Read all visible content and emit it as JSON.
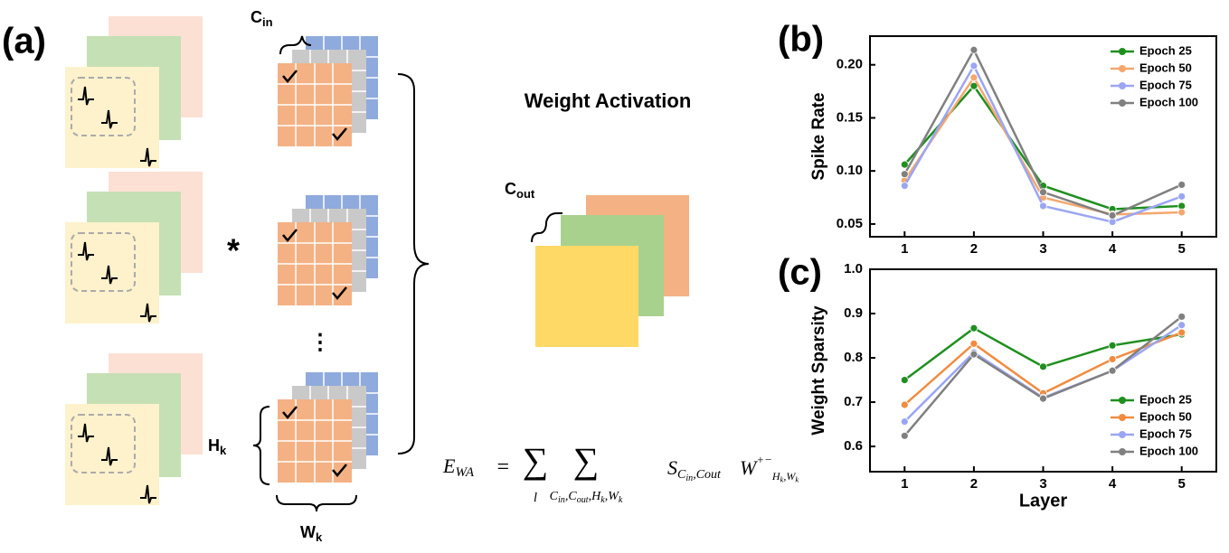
{
  "diagram": {
    "label": "(a)",
    "title": "Weight Activation",
    "op": "*",
    "ellipsis": "⋮",
    "c_in": {
      "b": "C",
      "s": "in"
    },
    "c_out": {
      "b": "C",
      "s": "out"
    },
    "h_k": {
      "b": "H",
      "s": "k"
    },
    "w_k": {
      "b": "W",
      "s": "k"
    },
    "formula": {
      "lhs": "E",
      "lhs_sub": "WA",
      "eq": "=",
      "sum": "∑",
      "sum1_sub": "l",
      "sep": ",",
      "sum2_sub": [
        {
          "b": "C",
          "s": "in"
        },
        {
          "b": "C",
          "s": "out"
        },
        {
          "b": "H",
          "s": "k"
        },
        {
          "b": "W",
          "s": "k"
        }
      ],
      "s": "S",
      "s_sub": [
        {
          "b": "C",
          "s": "in"
        },
        {
          "b": "Cout"
        }
      ],
      "w": "W",
      "w_sup": "+−",
      "w_sub": [
        {
          "b": "H",
          "s": "k"
        },
        {
          "b": "W",
          "s": "k"
        }
      ]
    }
  },
  "chart_data": [
    {
      "type": "line",
      "panel_label": "(b)",
      "y_label": "Spike Rate",
      "x": [
        1,
        2,
        3,
        4,
        5
      ],
      "xlim": [
        0.5,
        5.5
      ],
      "xticks": [
        1,
        2,
        3,
        4,
        5
      ],
      "ylim": [
        0.038,
        0.227
      ],
      "yticks": [
        {
          "value": 0.05,
          "label": "0.05"
        },
        {
          "value": 0.1,
          "label": "0.10"
        },
        {
          "value": 0.15,
          "label": "0.15"
        },
        {
          "value": 0.2,
          "label": "0.20"
        }
      ],
      "grid": false,
      "legend": "upper right",
      "series": [
        {
          "name": "Epoch 25",
          "color": "#1f8f1f",
          "values": [
            0.106,
            0.18,
            0.086,
            0.064,
            0.067
          ]
        },
        {
          "name": "Epoch 50",
          "color": "#f4a76e",
          "values": [
            0.091,
            0.188,
            0.075,
            0.059,
            0.061
          ]
        },
        {
          "name": "Epoch 75",
          "color": "#9aa6f2",
          "values": [
            0.086,
            0.199,
            0.067,
            0.052,
            0.076
          ]
        },
        {
          "name": "Epoch 100",
          "color": "#808080",
          "values": [
            0.097,
            0.214,
            0.08,
            0.058,
            0.087
          ]
        }
      ]
    },
    {
      "type": "line",
      "panel_label": "(c)",
      "x_label": "Layer",
      "y_label": "Weight Sparsity",
      "x": [
        1,
        2,
        3,
        4,
        5
      ],
      "xlim": [
        0.5,
        5.5
      ],
      "xticks": [
        1,
        2,
        3,
        4,
        5
      ],
      "ylim": [
        0.543,
        1.0
      ],
      "yticks": [
        0.6,
        0.7,
        0.8,
        0.9,
        {
          "value": 1.0,
          "label": "1.0"
        }
      ],
      "grid": false,
      "legend": "lower right",
      "series": [
        {
          "name": "Epoch 25",
          "color": "#1f8f1f",
          "values": [
            0.75,
            0.867,
            0.78,
            0.828,
            0.853
          ]
        },
        {
          "name": "Epoch 50",
          "color": "#f08c40",
          "values": [
            0.694,
            0.832,
            0.72,
            0.797,
            0.857
          ]
        },
        {
          "name": "Epoch 75",
          "color": "#9aa6f2",
          "values": [
            0.656,
            0.812,
            0.71,
            0.771,
            0.874
          ]
        },
        {
          "name": "Epoch 100",
          "color": "#808080",
          "values": [
            0.624,
            0.808,
            0.708,
            0.771,
            0.893
          ]
        }
      ]
    }
  ]
}
